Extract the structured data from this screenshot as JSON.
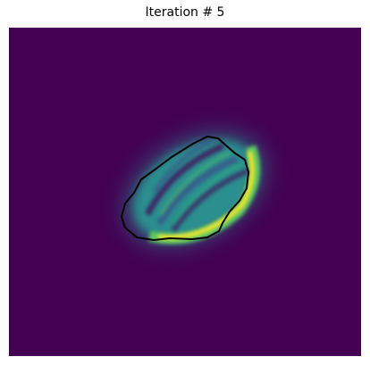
{
  "figure": {
    "title": "Iteration # 5",
    "colors": {
      "background": "#440154",
      "low": "#3b528b",
      "mid": "#21918c",
      "high": "#5ec962",
      "peak": "#fde725",
      "contour": "#000000"
    }
  }
}
